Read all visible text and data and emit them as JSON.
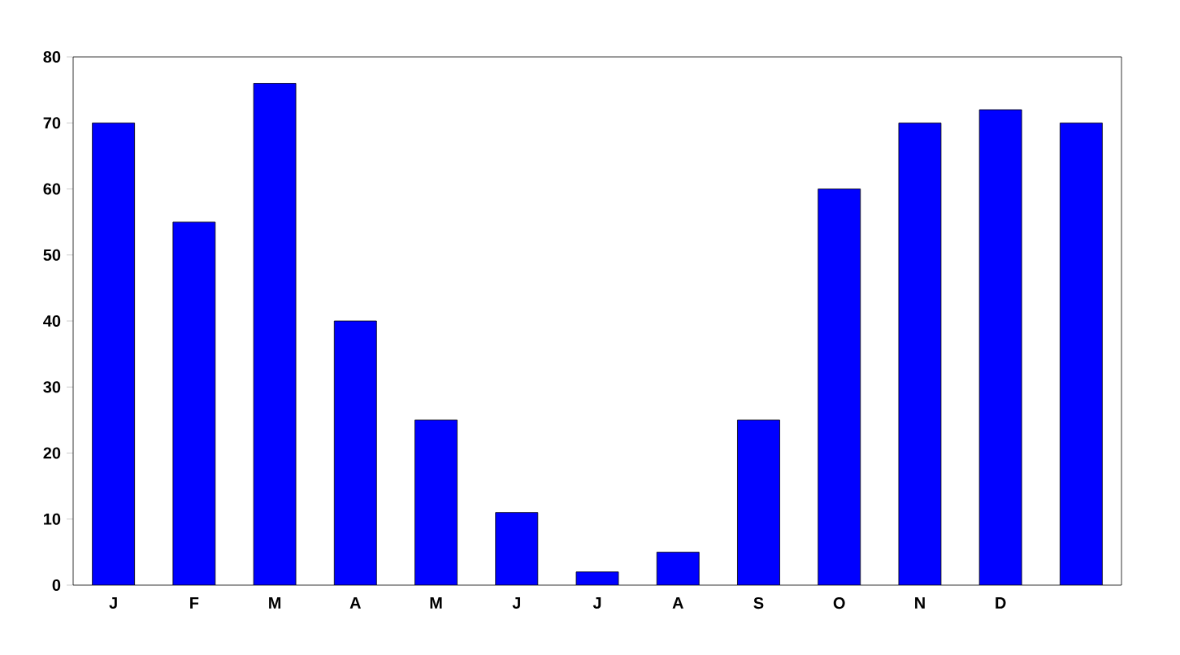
{
  "chart_data": {
    "type": "bar",
    "categories": [
      "J",
      "F",
      "M",
      "A",
      "M",
      "J",
      "J",
      "A",
      "S",
      "O",
      "N",
      "D",
      null
    ],
    "values": [
      70,
      55,
      76,
      40,
      25,
      11,
      2,
      5,
      25,
      60,
      70,
      72,
      70
    ],
    "color": "#0000ff",
    "ylim": [
      0,
      80
    ],
    "yticks": [
      0,
      10,
      20,
      30,
      40,
      50,
      60,
      70,
      80
    ]
  }
}
